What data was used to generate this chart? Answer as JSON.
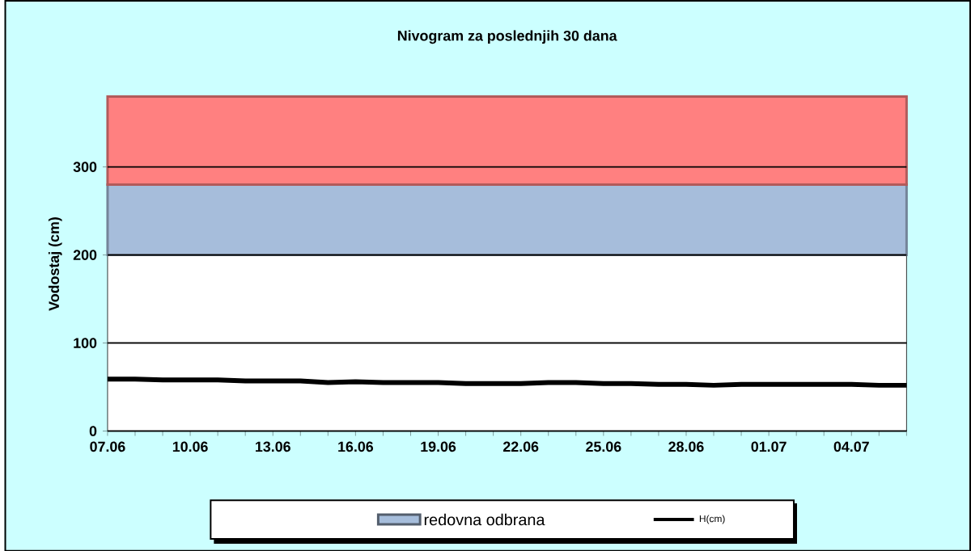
{
  "chart_data": {
    "type": "line",
    "title": "Nivogram za poslednjih 30 dana",
    "ylabel": "Vodostaj (cm)",
    "categories": [
      "07.06",
      null,
      null,
      "10.06",
      null,
      null,
      "13.06",
      null,
      null,
      "16.06",
      null,
      null,
      "19.06",
      null,
      null,
      "22.06",
      null,
      null,
      "25.06",
      null,
      null,
      "28.06",
      null,
      null,
      "01.07",
      null,
      null,
      "04.07",
      null,
      null
    ],
    "series": [
      {
        "name": "H(cm)",
        "color": "#000000",
        "values": [
          59,
          59,
          58,
          58,
          58,
          57,
          57,
          57,
          55,
          56,
          55,
          55,
          55,
          54,
          54,
          54,
          55,
          55,
          54,
          54,
          53,
          53,
          52,
          53,
          53,
          53,
          53,
          53,
          52,
          52
        ]
      }
    ],
    "bands": [
      {
        "axis": "y",
        "from": 200,
        "to": 280,
        "label": "redovna odbrana",
        "color": "#a6bddb"
      },
      {
        "axis": "y",
        "from": 280,
        "to": 380,
        "color": "#ff8080"
      }
    ],
    "ylim": [
      0,
      380
    ],
    "yticks": [
      0,
      100,
      200,
      300
    ],
    "grid": "y",
    "legend": "bottom",
    "marker": "none",
    "line_style": "solid"
  }
}
